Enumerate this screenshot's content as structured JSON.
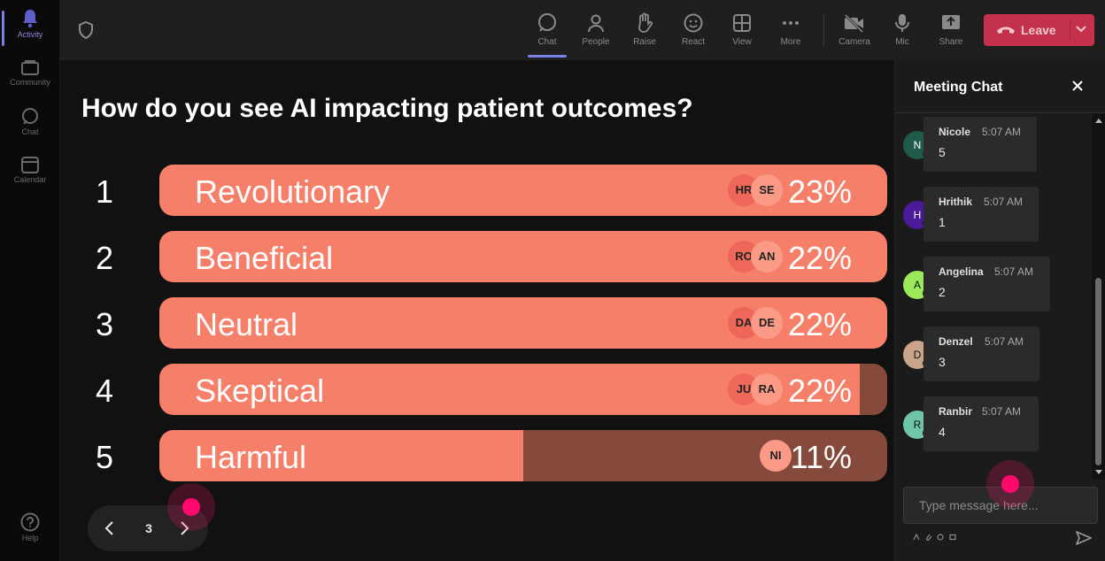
{
  "rail": {
    "items": [
      {
        "label": "Activity",
        "icon": "bell-icon",
        "active": true
      },
      {
        "label": "Community",
        "icon": "community-icon"
      },
      {
        "label": "Chat",
        "icon": "chat-icon"
      },
      {
        "label": "Calendar",
        "icon": "calendar-icon"
      }
    ],
    "help": {
      "label": "Help",
      "icon": "help-icon"
    }
  },
  "toolbar": {
    "buttons": [
      {
        "label": "Chat",
        "icon": "chat-icon",
        "active": true
      },
      {
        "label": "People",
        "icon": "people-icon"
      },
      {
        "label": "Raise",
        "icon": "raise-hand-icon"
      },
      {
        "label": "React",
        "icon": "smiley-icon"
      },
      {
        "label": "View",
        "icon": "grid-icon"
      },
      {
        "label": "More",
        "icon": "more-icon"
      },
      {
        "label": "Camera",
        "icon": "camera-off-icon"
      },
      {
        "label": "Mic",
        "icon": "mic-icon"
      },
      {
        "label": "Share",
        "icon": "share-icon"
      }
    ],
    "leave_label": "Leave",
    "leave_color": "#c4314b"
  },
  "poll": {
    "question": "How do you see AI impacting patient outcomes?",
    "current_page": "3",
    "fill_color": "#f57f68",
    "track_color": "#854a3c",
    "options": [
      {
        "number": "1",
        "label": "Revolutionary",
        "percent": "23%",
        "fill": 1.0,
        "avatars": [
          "HR",
          "SE"
        ]
      },
      {
        "number": "2",
        "label": "Beneficial",
        "percent": "22%",
        "fill": 1.0,
        "avatars": [
          "RO",
          "AN"
        ]
      },
      {
        "number": "3",
        "label": "Neutral",
        "percent": "22%",
        "fill": 1.0,
        "avatars": [
          "DA",
          "DE"
        ]
      },
      {
        "number": "4",
        "label": "Skeptical",
        "percent": "22%",
        "fill": 0.962,
        "avatars": [
          "JU",
          "RA"
        ]
      },
      {
        "number": "5",
        "label": "Harmful",
        "percent": "11%",
        "fill": 0.5,
        "avatars": [
          "NI"
        ]
      }
    ]
  },
  "chat": {
    "title": "Meeting Chat",
    "placeholder": "Type message here...",
    "messages": [
      {
        "initial": "N",
        "name": "Nicole",
        "time": "5:07 AM",
        "text": "5",
        "color": "#1f5a4a"
      },
      {
        "initial": "H",
        "name": "Hrithik",
        "time": "5:07 AM",
        "text": "1",
        "color": "#4a1a9a"
      },
      {
        "initial": "A",
        "name": "Angelina",
        "time": "5:07 AM",
        "text": "2",
        "color": "#9be85a"
      },
      {
        "initial": "D",
        "name": "Denzel",
        "time": "5:07 AM",
        "text": "3",
        "color": "#c9a48a"
      },
      {
        "initial": "R",
        "name": "Ranbir",
        "time": "5:07 AM",
        "text": "4",
        "color": "#6fc6a6"
      }
    ]
  }
}
